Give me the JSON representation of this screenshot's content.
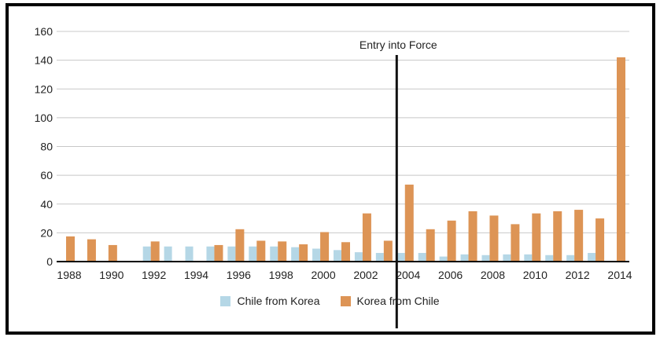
{
  "chart_data": {
    "type": "bar",
    "categories": [
      1988,
      1989,
      1990,
      1991,
      1992,
      1993,
      1994,
      1995,
      1996,
      1997,
      1998,
      1999,
      2000,
      2001,
      2002,
      2003,
      2004,
      2005,
      2006,
      2007,
      2008,
      2009,
      2010,
      2011,
      2012,
      2013,
      2014
    ],
    "x_tick_labels": [
      "1988",
      "1990",
      "1992",
      "1994",
      "1996",
      "1998",
      "2000",
      "2002",
      "2004",
      "2006",
      "2008",
      "2010",
      "2012",
      "2014"
    ],
    "series": [
      {
        "name": "Chile from Korea",
        "color": "#b5d7e6",
        "values": [
          null,
          null,
          null,
          null,
          10.5,
          10.5,
          10.5,
          10.5,
          10.5,
          10.5,
          10.5,
          10,
          9,
          8,
          6.5,
          6,
          6,
          6,
          3.5,
          5,
          4.5,
          5,
          5,
          4.5,
          4.5,
          6,
          null
        ]
      },
      {
        "name": "Korea from Chile",
        "color": "#dd9455",
        "values": [
          17.5,
          15.5,
          11.5,
          null,
          14,
          null,
          null,
          11.5,
          22.5,
          14.5,
          14,
          12,
          20.5,
          13.5,
          33.5,
          14.5,
          53.5,
          22.5,
          28.5,
          35,
          32,
          26,
          33.5,
          35,
          36,
          30,
          142
        ]
      }
    ],
    "ylim": [
      0,
      160
    ],
    "y_ticks": [
      0,
      20,
      40,
      60,
      80,
      100,
      120,
      140,
      160
    ],
    "grid": true,
    "legend_position": "bottom",
    "annotation": {
      "label": "Entry into Force",
      "between": [
        2003,
        2004
      ]
    }
  }
}
